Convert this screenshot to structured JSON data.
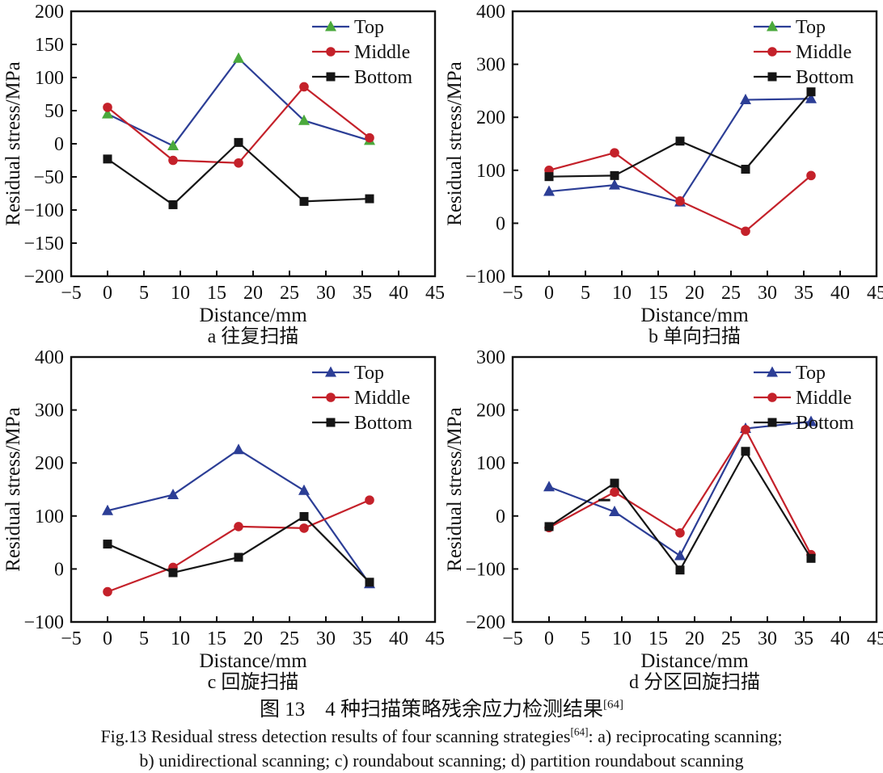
{
  "caption": {
    "line_cn": {
      "text": "图 13　4 种扫描策略残余应力检测结果",
      "sup": "[64]"
    },
    "line_en1": {
      "text": "Fig.13 Residual stress detection results of four scanning strategies",
      "sup": "[64]",
      "tail": ": a) reciprocating scanning;"
    },
    "line_en2": "b) unidirectional scanning; c) roundabout scanning; d) partition roundabout scanning"
  },
  "colors": {
    "blue_line": "#2c3e96",
    "green_marker": "#4aa93c",
    "red": "#c4212a",
    "black": "#151515"
  },
  "chart_data": [
    {
      "type": "line",
      "panel": "a",
      "subtitle": "a  往复扫描",
      "xlabel": "Distance/mm",
      "ylabel": "Residual stress/MPa",
      "xlim": [
        -5,
        45
      ],
      "xticks": [
        -5,
        0,
        5,
        10,
        15,
        20,
        25,
        30,
        35,
        40,
        45
      ],
      "ylim": [
        -200,
        200
      ],
      "yticks": [
        -200,
        -150,
        -100,
        -50,
        0,
        50,
        100,
        150,
        200
      ],
      "x": [
        0,
        9,
        18,
        27,
        36
      ],
      "legend_position": "top-right-inside",
      "grid": false,
      "series": [
        {
          "name": "Top",
          "marker": "triangle",
          "line_color": "#2c3e96",
          "marker_color": "#4aa93c",
          "legend_marker_color": "#4aa93c",
          "values": [
            45,
            -3,
            129,
            35,
            5
          ]
        },
        {
          "name": "Middle",
          "marker": "circle",
          "line_color": "#c4212a",
          "marker_color": "#c4212a",
          "legend_marker_color": "#c4212a",
          "values": [
            55,
            -25,
            -29,
            86,
            9
          ]
        },
        {
          "name": "Bottom",
          "marker": "square",
          "line_color": "#151515",
          "marker_color": "#151515",
          "legend_marker_color": "#151515",
          "values": [
            -23,
            -92,
            2,
            -87,
            -83
          ]
        }
      ]
    },
    {
      "type": "line",
      "panel": "b",
      "subtitle": "b  单向扫描",
      "xlabel": "Distance/mm",
      "ylabel": "Residual stress/MPa",
      "xlim": [
        -5,
        45
      ],
      "xticks": [
        -5,
        0,
        5,
        10,
        15,
        20,
        25,
        30,
        35,
        40,
        45
      ],
      "ylim": [
        -100,
        400
      ],
      "yticks": [
        -100,
        0,
        100,
        200,
        300,
        400
      ],
      "x": [
        0,
        9,
        18,
        27,
        36
      ],
      "legend_position": "top-right-inside",
      "grid": false,
      "series": [
        {
          "name": "Top",
          "marker": "triangle",
          "line_color": "#2c3e96",
          "marker_color": "#2c3e96",
          "legend_marker_color": "#4aa93c",
          "values": [
            60,
            72,
            40,
            233,
            235
          ]
        },
        {
          "name": "Middle",
          "marker": "circle",
          "line_color": "#c4212a",
          "marker_color": "#c4212a",
          "legend_marker_color": "#c4212a",
          "values": [
            100,
            133,
            42,
            -15,
            90
          ]
        },
        {
          "name": "Bottom",
          "marker": "square",
          "line_color": "#151515",
          "marker_color": "#151515",
          "legend_marker_color": "#151515",
          "values": [
            88,
            90,
            155,
            102,
            248
          ]
        }
      ]
    },
    {
      "type": "line",
      "panel": "c",
      "subtitle": "c  回旋扫描",
      "xlabel": "Distance/mm",
      "ylabel": "Residual stress/MPa",
      "xlim": [
        -5,
        45
      ],
      "xticks": [
        -5,
        0,
        5,
        10,
        15,
        20,
        25,
        30,
        35,
        40,
        45
      ],
      "ylim": [
        -100,
        400
      ],
      "yticks": [
        -100,
        0,
        100,
        200,
        300,
        400
      ],
      "x": [
        0,
        9,
        18,
        27,
        36
      ],
      "legend_position": "top-right-inside",
      "grid": false,
      "series": [
        {
          "name": "Top",
          "marker": "triangle",
          "line_color": "#2c3e96",
          "marker_color": "#2c3e96",
          "legend_marker_color": "#2c3e96",
          "values": [
            110,
            140,
            225,
            148,
            -28
          ]
        },
        {
          "name": "Middle",
          "marker": "circle",
          "line_color": "#c4212a",
          "marker_color": "#c4212a",
          "legend_marker_color": "#c4212a",
          "values": [
            -43,
            3,
            80,
            77,
            130
          ]
        },
        {
          "name": "Bottom",
          "marker": "square",
          "line_color": "#151515",
          "marker_color": "#151515",
          "legend_marker_color": "#151515",
          "values": [
            47,
            -7,
            22,
            99,
            -25
          ]
        }
      ]
    },
    {
      "type": "line",
      "panel": "d",
      "subtitle": "d  分区回旋扫描",
      "xlabel": "Distance/mm",
      "ylabel": "Residual stress/MPa",
      "xlim": [
        -5,
        45
      ],
      "xticks": [
        -5,
        0,
        5,
        10,
        15,
        20,
        25,
        30,
        35,
        40,
        45
      ],
      "ylim": [
        -200,
        300
      ],
      "yticks": [
        -200,
        -100,
        0,
        100,
        200,
        300
      ],
      "x": [
        0,
        9,
        18,
        27,
        36
      ],
      "legend_position": "top-right-inside",
      "grid": false,
      "artifact_dash": {
        "x1": 6.8,
        "x2": 8.4,
        "y": 30
      },
      "series": [
        {
          "name": "Top",
          "marker": "triangle",
          "line_color": "#2c3e96",
          "marker_color": "#2c3e96",
          "legend_marker_color": "#2c3e96",
          "values": [
            55,
            8,
            -75,
            165,
            178
          ]
        },
        {
          "name": "Middle",
          "marker": "circle",
          "line_color": "#c4212a",
          "marker_color": "#c4212a",
          "legend_marker_color": "#c4212a",
          "values": [
            -22,
            45,
            -32,
            163,
            -73
          ]
        },
        {
          "name": "Bottom",
          "marker": "square",
          "line_color": "#151515",
          "marker_color": "#151515",
          "legend_marker_color": "#151515",
          "values": [
            -20,
            62,
            -102,
            122,
            -80
          ]
        }
      ]
    }
  ]
}
